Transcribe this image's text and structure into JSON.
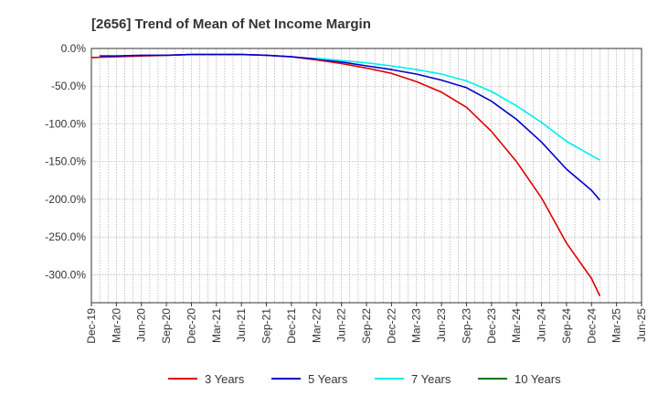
{
  "chart_data": {
    "type": "line",
    "title": "[2656]  Trend of Mean of Net Income Margin",
    "xlabel": "",
    "ylabel": "",
    "ylim": [
      -337,
      0
    ],
    "y_ticks": [
      0,
      -50,
      -100,
      -150,
      -200,
      -250,
      -300
    ],
    "y_tick_labels": [
      "0.0%",
      "-50.0%",
      "-100.0%",
      "-150.0%",
      "-200.0%",
      "-250.0%",
      "-300.0%"
    ],
    "x_ticks": [
      "Dec-19",
      "Mar-20",
      "Jun-20",
      "Sep-20",
      "Dec-20",
      "Mar-21",
      "Jun-21",
      "Sep-21",
      "Dec-21",
      "Mar-22",
      "Jun-22",
      "Sep-22",
      "Dec-22",
      "Mar-23",
      "Jun-23",
      "Sep-23",
      "Dec-23",
      "Mar-24",
      "Jun-24",
      "Sep-24",
      "Dec-24",
      "Mar-25",
      "Jun-25"
    ],
    "grid": true,
    "legend_position": "bottom",
    "series": [
      {
        "name": "3 Years",
        "color": "#dd0000",
        "points": [
          [
            "Dec-19",
            -12
          ],
          [
            "Mar-20",
            -11
          ],
          [
            "Jun-20",
            -10
          ],
          [
            "Sep-20",
            -9
          ],
          [
            "Dec-20",
            -8
          ],
          [
            "Mar-21",
            -8
          ],
          [
            "Jun-21",
            -8
          ],
          [
            "Sep-21",
            -9
          ],
          [
            "Dec-21",
            -11
          ],
          [
            "Mar-22",
            -15
          ],
          [
            "Jun-22",
            -20
          ],
          [
            "Sep-22",
            -26
          ],
          [
            "Dec-22",
            -33
          ],
          [
            "Mar-23",
            -44
          ],
          [
            "Jun-23",
            -58
          ],
          [
            "Sep-23",
            -78
          ],
          [
            "Dec-23",
            -110
          ],
          [
            "Mar-24",
            -150
          ],
          [
            "Jun-24",
            -198
          ],
          [
            "Sep-24",
            -258
          ],
          [
            "Dec-24",
            -305
          ],
          [
            "Jan-25",
            -328
          ]
        ]
      },
      {
        "name": "5 Years",
        "color": "#0000cc",
        "points": [
          [
            "Jan-20",
            -10
          ],
          [
            "Mar-20",
            -10
          ],
          [
            "Jun-20",
            -9
          ],
          [
            "Sep-20",
            -9
          ],
          [
            "Dec-20",
            -8
          ],
          [
            "Mar-21",
            -8
          ],
          [
            "Jun-21",
            -8
          ],
          [
            "Sep-21",
            -9
          ],
          [
            "Dec-21",
            -11
          ],
          [
            "Mar-22",
            -14
          ],
          [
            "Jun-22",
            -18
          ],
          [
            "Sep-22",
            -23
          ],
          [
            "Dec-22",
            -28
          ],
          [
            "Mar-23",
            -34
          ],
          [
            "Jun-23",
            -42
          ],
          [
            "Sep-23",
            -52
          ],
          [
            "Dec-23",
            -70
          ],
          [
            "Mar-24",
            -94
          ],
          [
            "Jun-24",
            -124
          ],
          [
            "Sep-24",
            -160
          ],
          [
            "Dec-24",
            -188
          ],
          [
            "Jan-25",
            -201
          ]
        ]
      },
      {
        "name": "7 Years",
        "color": "#00eeee",
        "points": [
          [
            "Mar-22",
            -13
          ],
          [
            "Jun-22",
            -16
          ],
          [
            "Sep-22",
            -19
          ],
          [
            "Dec-22",
            -23
          ],
          [
            "Mar-23",
            -28
          ],
          [
            "Jun-23",
            -34
          ],
          [
            "Sep-23",
            -43
          ],
          [
            "Dec-23",
            -57
          ],
          [
            "Mar-24",
            -76
          ],
          [
            "Jun-24",
            -98
          ],
          [
            "Sep-24",
            -123
          ],
          [
            "Dec-24",
            -142
          ],
          [
            "Jan-25",
            -148
          ]
        ]
      },
      {
        "name": "10 Years",
        "color": "#007700",
        "points": []
      }
    ]
  }
}
